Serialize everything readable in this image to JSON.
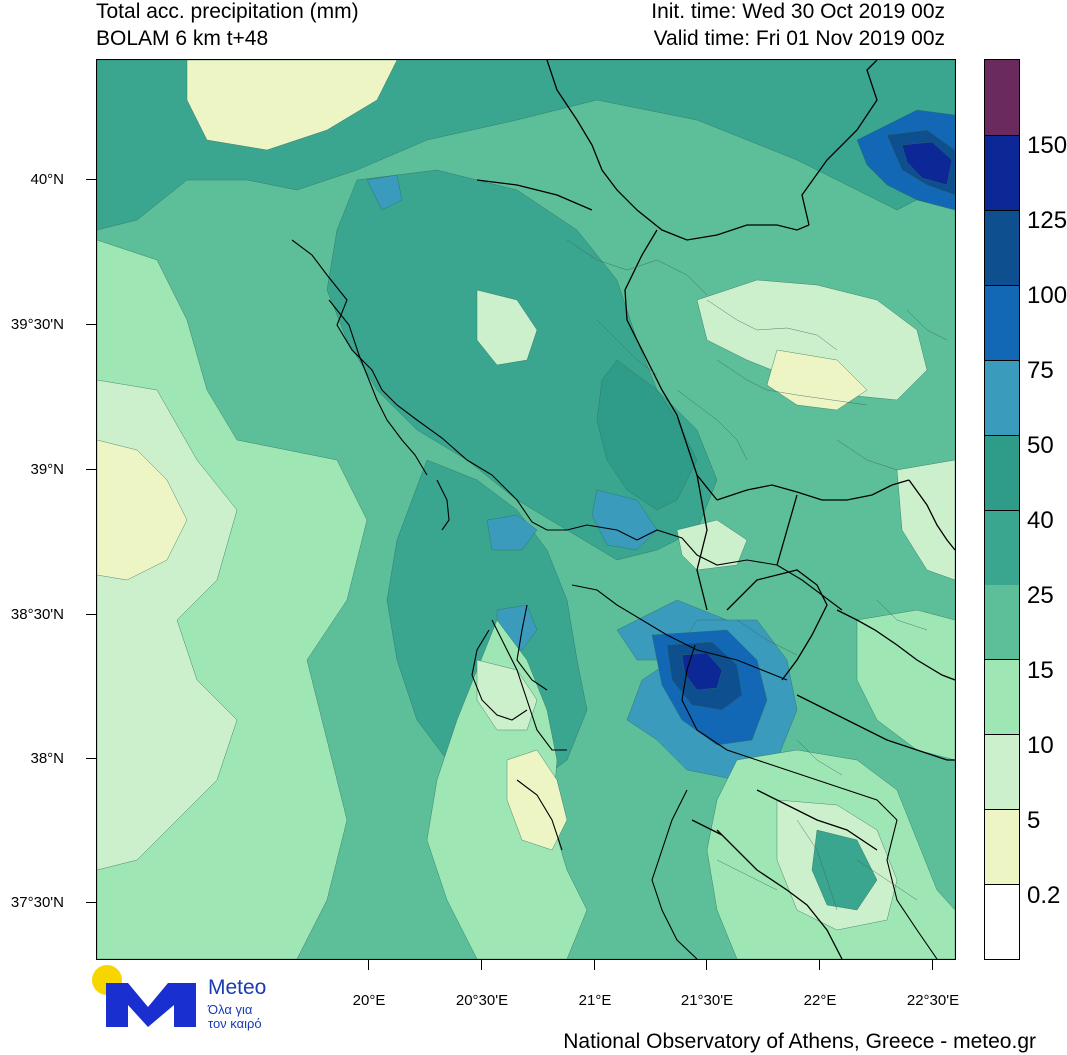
{
  "header": {
    "title": "Total acc. precipitation (mm)",
    "model": "BOLAM 6 km t+48",
    "init_time": "Init. time: Wed 30 Oct 2019 00z",
    "valid_time": "Valid time: Fri 01 Nov 2019 00z"
  },
  "axes": {
    "lat_labels": [
      "40°N",
      "39°30'N",
      "39°N",
      "38°30'N",
      "38°N",
      "37°30'N"
    ],
    "lon_labels": [
      "20°E",
      "20°30'E",
      "21°E",
      "21°30'E",
      "22°E",
      "22°30'E"
    ]
  },
  "colorbar": {
    "levels": [
      "0.2",
      "5",
      "10",
      "15",
      "25",
      "40",
      "50",
      "75",
      "100",
      "125",
      "150"
    ],
    "colors": [
      "#ffffff",
      "#edf5c4",
      "#cdf0cc",
      "#9ee6b4",
      "#5cbf9a",
      "#3aa68f",
      "#2f9c8a",
      "#3a9bbd",
      "#1368b5",
      "#0d4f8f",
      "#0c2796",
      "#6b2a5e"
    ]
  },
  "map": {
    "colors": {
      "pale_yellow": "#edf5c4",
      "light_green": "#cdf0cc",
      "mint": "#9ee6b4",
      "medium_green": "#5cbf9a",
      "teal": "#3aa68f",
      "dark_teal": "#2f9c8a",
      "light_blue": "#3a9bbd",
      "blue": "#1368b5",
      "dark_blue": "#0d4f8f",
      "navy": "#0c2796"
    }
  },
  "logo": {
    "word": "Meteo",
    "subtitle": "Όλα για\nτον καιρό"
  },
  "footer": "National Observatory of Athens, Greece - meteo.gr"
}
